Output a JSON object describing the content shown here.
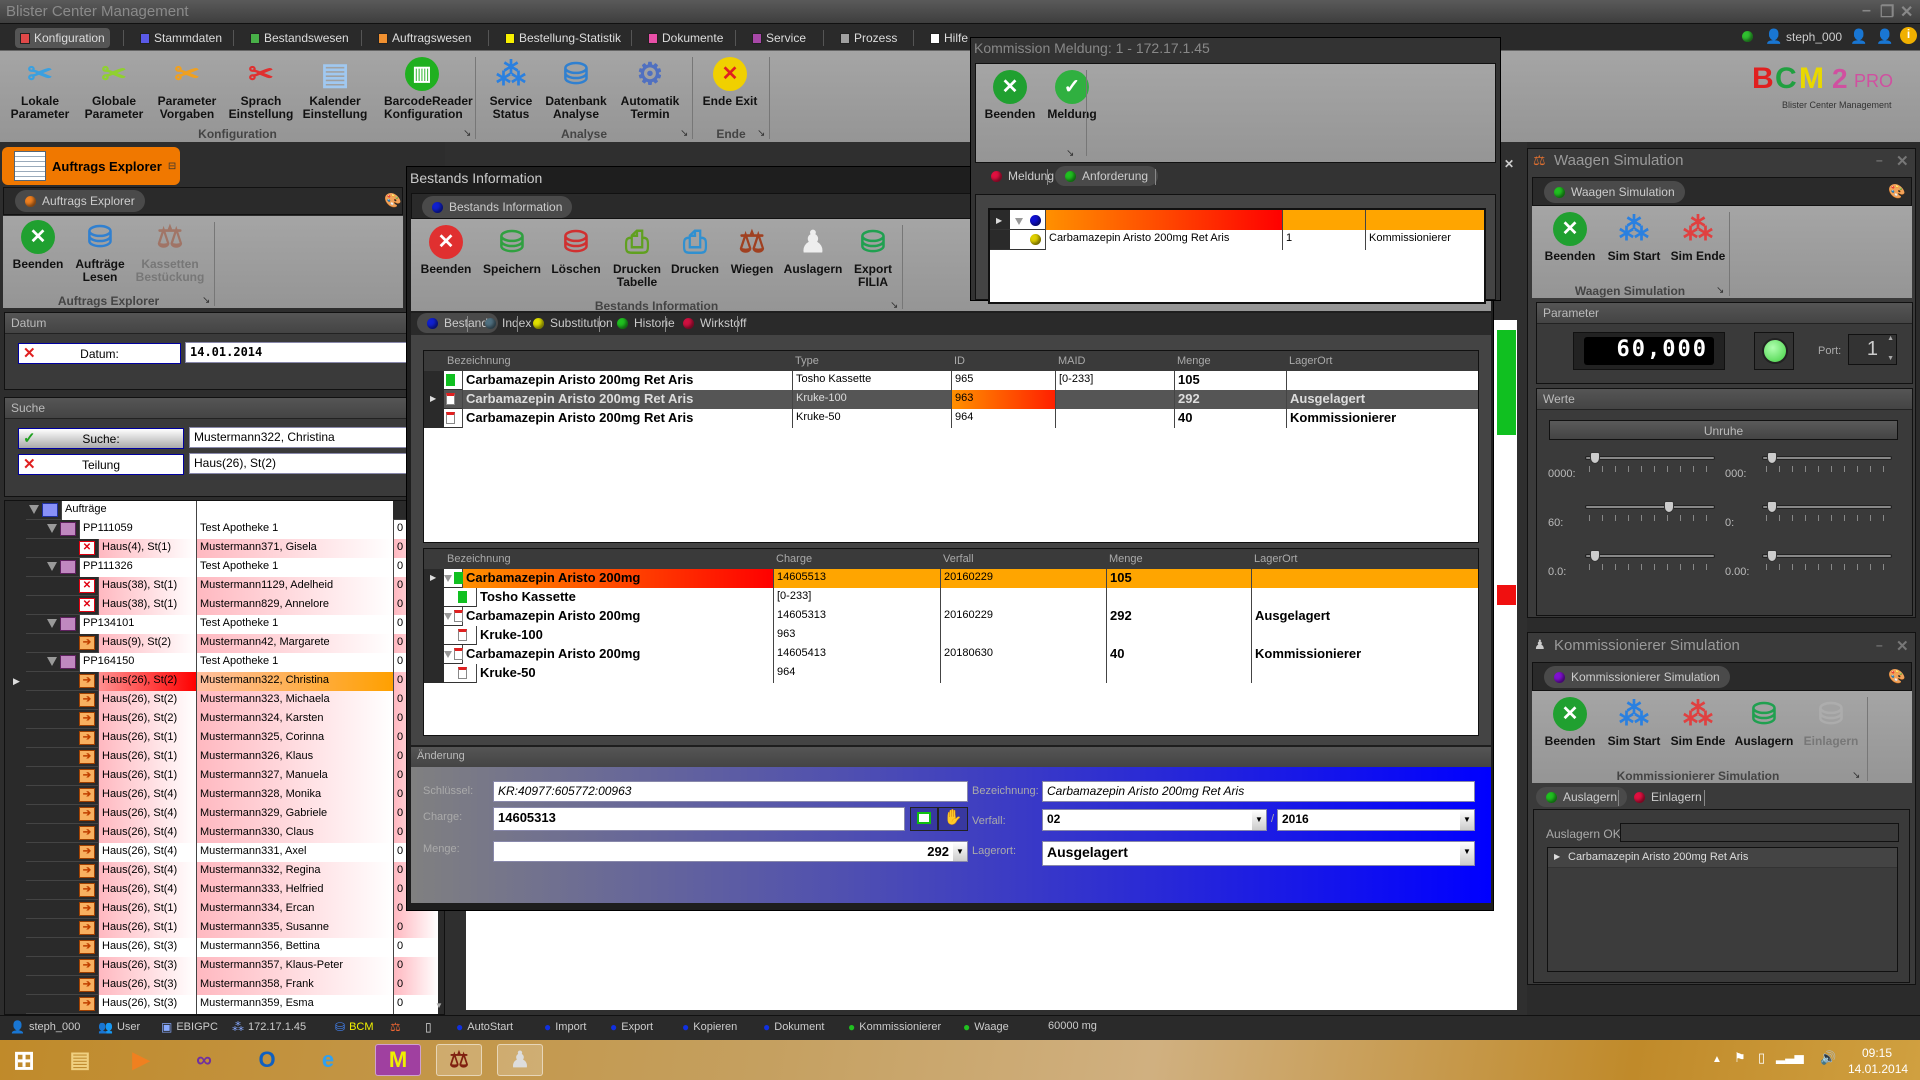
{
  "app": {
    "title": "Blister Center Management",
    "user": "steph_000"
  },
  "menu_tabs": [
    {
      "label": "Konfiguration",
      "color": "#e04848",
      "active": true
    },
    {
      "label": "Stammdaten",
      "color": "#5a5ae8"
    },
    {
      "label": "Bestandswesen",
      "color": "#48b048"
    },
    {
      "label": "Auftragswesen",
      "color": "#f09030"
    },
    {
      "label": "Bestellung-Statistik",
      "color": "#f8f000"
    },
    {
      "label": "Dokumente",
      "color": "#e850a8"
    },
    {
      "label": "Service",
      "color": "#a848a8"
    },
    {
      "label": "Prozess",
      "color": "#a0a0a0"
    },
    {
      "label": "Hilfe",
      "color": "#ffffff"
    }
  ],
  "main_ribbon": {
    "groups": [
      {
        "label": "Konfiguration",
        "buttons": [
          {
            "label": "Lokale\nParameter",
            "icon": "wrench-blue-icon"
          },
          {
            "label": "Globale\nParameter",
            "icon": "wrench-green-icon"
          },
          {
            "label": "Parameter\nVorgaben",
            "icon": "wrench-orange-icon"
          },
          {
            "label": "Sprach\nEinstellung",
            "icon": "wrench-red-icon"
          },
          {
            "label": "Kalender\nEinstellung",
            "icon": "calendar-layers-icon"
          },
          {
            "label": "BarcodeReader\nKonfiguration",
            "icon": "barcode-icon"
          }
        ]
      },
      {
        "label": "Analyse",
        "buttons": [
          {
            "label": "Service\nStatus",
            "icon": "network-icon"
          },
          {
            "label": "Datenbank\nAnalyse",
            "icon": "database-gear-icon"
          },
          {
            "label": "Automatik\nTermin",
            "icon": "gear-icon"
          }
        ]
      },
      {
        "label": "Ende",
        "buttons": [
          {
            "label": "Ende Exit",
            "icon": "exit-icon"
          }
        ]
      }
    ]
  },
  "logo": {
    "text": "BCM2 PRO",
    "subtitle": "Blister Center Management"
  },
  "auftrags_explorer": {
    "dock_tab": "Auftrags Explorer",
    "tab": "Auftrags Explorer",
    "ribbon": {
      "group": "Auftrags Explorer",
      "buttons": [
        {
          "label": "Beenden",
          "icon": "close-green-icon"
        },
        {
          "label": "Aufträge\nLesen",
          "icon": "database-icon"
        },
        {
          "label": "Kassetten\nBestückung",
          "icon": "scale-icon",
          "disabled": true
        }
      ]
    },
    "datum": {
      "section": "Datum",
      "label": "Datum:",
      "value": "14.01.2014"
    },
    "suche": {
      "section": "Suche",
      "search_label": "Suche:",
      "search_value": "Mustermann322, Christina",
      "teilung_label": "Teilung",
      "teilung_value": "Haus(26), St(2)"
    },
    "tree": [
      {
        "t": "root",
        "c1": "Aufträge"
      },
      {
        "t": "order",
        "c1": "PP111059",
        "c2": "Test Apotheke 1",
        "c3": "0"
      },
      {
        "t": "patient",
        "state": "error",
        "hl": "pink",
        "c1": "Haus(4), St(1)",
        "c2": "Mustermann371, Gisela",
        "c3": "0"
      },
      {
        "t": "order",
        "c1": "PP111326",
        "c2": "Test Apotheke 1",
        "c3": "0"
      },
      {
        "t": "patient",
        "state": "error",
        "hl": "pink",
        "c1": "Haus(38), St(1)",
        "c2": "Mustermann1129, Adelheid",
        "c3": "0"
      },
      {
        "t": "patient",
        "state": "error",
        "hl": "pink",
        "c1": "Haus(38), St(1)",
        "c2": "Mustermann829, Annelore",
        "c3": "0"
      },
      {
        "t": "order",
        "c1": "PP134101",
        "c2": "Test Apotheke 1",
        "c3": "0"
      },
      {
        "t": "patient",
        "state": "pending",
        "hl": "pink",
        "c1": "Haus(9), St(2)",
        "c2": "Mustermann42, Margarete",
        "c3": "0"
      },
      {
        "t": "order",
        "c1": "PP164150",
        "c2": "Test Apotheke 1",
        "c3": "0"
      },
      {
        "t": "patient",
        "state": "pending",
        "hl": "selected",
        "c1": "Haus(26), St(2)",
        "c2": "Mustermann322, Christina",
        "c3": "0"
      },
      {
        "t": "patient",
        "state": "pending",
        "hl": "pink",
        "c1": "Haus(26), St(2)",
        "c2": "Mustermann323, Michaela",
        "c3": "0"
      },
      {
        "t": "patient",
        "state": "pending",
        "hl": "pink",
        "c1": "Haus(26), St(2)",
        "c2": "Mustermann324, Karsten",
        "c3": "0"
      },
      {
        "t": "patient",
        "state": "pending",
        "hl": "pink",
        "c1": "Haus(26), St(1)",
        "c2": "Mustermann325, Corinna",
        "c3": "0"
      },
      {
        "t": "patient",
        "state": "pending",
        "hl": "pink",
        "c1": "Haus(26), St(1)",
        "c2": "Mustermann326, Klaus",
        "c3": "0"
      },
      {
        "t": "patient",
        "state": "pending",
        "hl": "pink",
        "c1": "Haus(26), St(1)",
        "c2": "Mustermann327, Manuela",
        "c3": "0"
      },
      {
        "t": "patient",
        "state": "pending",
        "hl": "pink",
        "c1": "Haus(26), St(4)",
        "c2": "Mustermann328, Monika",
        "c3": "0"
      },
      {
        "t": "patient",
        "state": "pending",
        "hl": "pink",
        "c1": "Haus(26), St(4)",
        "c2": "Mustermann329, Gabriele",
        "c3": "0"
      },
      {
        "t": "patient",
        "state": "pending",
        "hl": "pink",
        "c1": "Haus(26), St(4)",
        "c2": "Mustermann330, Claus",
        "c3": "0"
      },
      {
        "t": "patient",
        "state": "pending",
        "hl": "white",
        "c1": "Haus(26), St(4)",
        "c2": "Mustermann331, Axel",
        "c3": "0"
      },
      {
        "t": "patient",
        "state": "pending",
        "hl": "pink",
        "c1": "Haus(26), St(4)",
        "c2": "Mustermann332, Regina",
        "c3": "0"
      },
      {
        "t": "patient",
        "state": "pending",
        "hl": "pink",
        "c1": "Haus(26), St(4)",
        "c2": "Mustermann333, Helfried",
        "c3": "0"
      },
      {
        "t": "patient",
        "state": "pending",
        "hl": "pink",
        "c1": "Haus(26), St(1)",
        "c2": "Mustermann334, Ercan",
        "c3": "0"
      },
      {
        "t": "patient",
        "state": "pending",
        "hl": "pink",
        "c1": "Haus(26), St(1)",
        "c2": "Mustermann335, Susanne",
        "c3": "0"
      },
      {
        "t": "patient",
        "state": "pending",
        "hl": "white",
        "c1": "Haus(26), St(3)",
        "c2": "Mustermann356, Bettina",
        "c3": "0"
      },
      {
        "t": "patient",
        "state": "pending",
        "hl": "pink",
        "c1": "Haus(26), St(3)",
        "c2": "Mustermann357, Klaus-Peter",
        "c3": "0"
      },
      {
        "t": "patient",
        "state": "pending",
        "hl": "pink",
        "c1": "Haus(26), St(3)",
        "c2": "Mustermann358, Frank",
        "c3": "0"
      },
      {
        "t": "patient",
        "state": "pending",
        "hl": "white",
        "c1": "Haus(26), St(3)",
        "c2": "Mustermann359, Esma",
        "c3": "0"
      }
    ]
  },
  "bestands": {
    "title": "Bestands Information",
    "tab": "Bestands Information",
    "ribbon": {
      "group": "Bestands Information",
      "buttons": [
        {
          "label": "Beenden",
          "icon": "close-red-icon"
        },
        {
          "label": "Speichern",
          "icon": "database-add-icon"
        },
        {
          "label": "Löschen",
          "icon": "database-remove-icon"
        },
        {
          "label": "Drucken\nTabelle",
          "icon": "printer-green-icon"
        },
        {
          "label": "Drucken",
          "icon": "printer-blue-icon"
        },
        {
          "label": "Wiegen",
          "icon": "scale-icon"
        },
        {
          "label": "Auslagern",
          "icon": "robot-icon"
        },
        {
          "label": "Export\nFILIA",
          "icon": "database-export-icon"
        }
      ]
    },
    "subtabs": [
      {
        "label": "Bestand",
        "color": "#1020d0",
        "active": true
      },
      {
        "label": "Index",
        "color": "#507080"
      },
      {
        "label": "Substitution",
        "color": "#e0e000"
      },
      {
        "label": "Historie",
        "color": "#20c020"
      },
      {
        "label": "Wirkstoff",
        "color": "#d01040"
      }
    ],
    "grid1": {
      "columns": [
        "Bezeichnung",
        "Type",
        "ID",
        "MAID",
        "Menge",
        "LagerOrt"
      ],
      "rows": [
        {
          "icon": "kassette-icon",
          "cells": [
            "Carbamazepin Aristo 200mg Ret Aris",
            "Tosho Kassette",
            "965",
            "[0-233]",
            "105",
            ""
          ]
        },
        {
          "icon": "kruke-icon",
          "selected": true,
          "cells": [
            "Carbamazepin Aristo 200mg Ret Aris",
            "Kruke-100",
            "963",
            "",
            "292",
            "Ausgelagert"
          ]
        },
        {
          "icon": "kruke-icon",
          "cells": [
            "Carbamazepin Aristo 200mg Ret Aris",
            "Kruke-50",
            "964",
            "",
            "40",
            "Kommissionierer"
          ]
        }
      ]
    },
    "grid2": {
      "columns": [
        "Bezeichnung",
        "Charge",
        "Verfall",
        "Menge",
        "LagerOrt"
      ],
      "rows": [
        {
          "level": 0,
          "icon": "kassette-icon",
          "highlight": true,
          "cells": [
            "Carbamazepin Aristo 200mg",
            "14605513",
            "20160229",
            "105",
            ""
          ]
        },
        {
          "level": 1,
          "icon": "kassette-icon",
          "cells": [
            "Tosho Kassette",
            "[0-233]",
            "",
            "",
            ""
          ]
        },
        {
          "level": 0,
          "icon": "kruke-icon",
          "cells": [
            "Carbamazepin Aristo 200mg",
            "14605313",
            "20160229",
            "292",
            "Ausgelagert"
          ]
        },
        {
          "level": 1,
          "icon": "kruke-icon",
          "cells": [
            "Kruke-100",
            "963",
            "",
            "",
            ""
          ]
        },
        {
          "level": 0,
          "icon": "kruke-icon",
          "cells": [
            "Carbamazepin Aristo 200mg",
            "14605413",
            "20180630",
            "40",
            "Kommissionierer"
          ]
        },
        {
          "level": 1,
          "icon": "kruke-icon",
          "cells": [
            "Kruke-50",
            "964",
            "",
            "",
            ""
          ]
        }
      ]
    },
    "aenderung": {
      "section": "Änderung",
      "schluessel_label": "Schlüssel:",
      "schluessel": "KR:40977:605772:00963",
      "charge_label": "Charge:",
      "charge": "14605313",
      "menge_label": "Menge:",
      "menge": "292",
      "bezeichnung_label": "Bezeichnung:",
      "bezeichnung": "Carbamazepin Aristo 200mg Ret Aris",
      "verfall_label": "Verfall:",
      "verfall_month": "02",
      "verfall_sep": "/",
      "verfall_year": "2016",
      "lagerort_label": "Lagerort:",
      "lagerort": "Ausgelagert"
    }
  },
  "kommission_meldung": {
    "title": "Kommission Meldung: 1 - 172.17.1.45",
    "ribbon": {
      "buttons": [
        {
          "label": "Beenden",
          "icon": "close-green-icon"
        },
        {
          "label": "Meldung",
          "icon": "check-green-icon"
        }
      ]
    },
    "tabs": [
      {
        "label": "Meldung",
        "color": "#e01040"
      },
      {
        "label": "Anforderung",
        "color": "#20c020",
        "active": true
      }
    ],
    "rows": [
      {
        "cells": [
          "",
          "",
          ""
        ],
        "group": true
      },
      {
        "cells": [
          "Carbamazepin Aristo 200mg Ret Aris",
          "1",
          "Kommissionierer"
        ]
      }
    ]
  },
  "waagen": {
    "title": "Waagen Simulation",
    "tab": "Waagen Simulation",
    "ribbon": {
      "group": "Waagen Simulation",
      "buttons": [
        {
          "label": "Beenden",
          "icon": "close-green-icon"
        },
        {
          "label": "Sim Start",
          "icon": "network-start-icon"
        },
        {
          "label": "Sim Ende",
          "icon": "network-stop-icon"
        }
      ]
    },
    "parameter": {
      "section": "Parameter",
      "display": "60,000",
      "status_color": "#40d040",
      "port_label": "Port:",
      "port": "1"
    },
    "werte": {
      "section": "Werte",
      "unruhe": "Unruhe",
      "sliders": [
        {
          "label": "0000:",
          "value": 0.03
        },
        {
          "label": "000:",
          "value": 0.03
        },
        {
          "label": "60:",
          "value": 0.65
        },
        {
          "label": "0:",
          "value": 0.03
        },
        {
          "label": "0.0:",
          "value": 0.03
        },
        {
          "label": "0.00:",
          "value": 0.03
        }
      ]
    }
  },
  "kommissionierer": {
    "title": "Kommissionierer Simulation",
    "tab": "Kommissionierer Simulation",
    "ribbon": {
      "group": "Kommissionierer Simulation",
      "buttons": [
        {
          "label": "Beenden",
          "icon": "close-green-icon"
        },
        {
          "label": "Sim Start",
          "icon": "network-start-icon"
        },
        {
          "label": "Sim Ende",
          "icon": "network-stop-icon"
        },
        {
          "label": "Auslagern",
          "icon": "database-export-icon"
        },
        {
          "label": "Einlagern",
          "icon": "database-import-icon",
          "disabled": true
        }
      ]
    },
    "tabs": [
      {
        "label": "Auslagern",
        "color": "#20c020",
        "active": true
      },
      {
        "label": "Einlagern",
        "color": "#e01040"
      }
    ],
    "ok_label": "Auslagern OK:",
    "ok_value": "",
    "list": [
      "Carbamazepin Aristo 200mg Ret Aris"
    ]
  },
  "status_bar": [
    {
      "label": "steph_000",
      "icon": "user-icon",
      "color": "#ccc"
    },
    {
      "label": "User",
      "icon": "users-icon",
      "color": "#ccc"
    },
    {
      "label": "EBIGPC",
      "icon": "computer-icon",
      "color": "#ccc"
    },
    {
      "label": "172.17.1.45",
      "icon": "network-icon",
      "color": "#ccc"
    },
    {
      "label": "BCM",
      "icon": "database-icon",
      "color": "#f0f000"
    },
    {
      "label": "",
      "icon": "scale-icon",
      "color": "#ccc"
    },
    {
      "label": "",
      "icon": "device-icon",
      "color": "#ccc"
    },
    {
      "label": "AutoStart",
      "icon": "blue-dot-icon",
      "color": "#ccc"
    },
    {
      "label": "Import",
      "icon": "blue-dot-icon",
      "color": "#ccc"
    },
    {
      "label": "Export",
      "icon": "blue-dot-icon",
      "color": "#ccc"
    },
    {
      "label": "Kopieren",
      "icon": "blue-dot-icon",
      "color": "#ccc"
    },
    {
      "label": "Dokument",
      "icon": "blue-dot-icon",
      "color": "#ccc"
    },
    {
      "label": "Kommissionierer",
      "icon": "green-dot-icon",
      "color": "#ccc"
    },
    {
      "label": "Waage",
      "icon": "green-dot-icon",
      "color": "#ccc"
    },
    {
      "label": "60000 mg",
      "icon": "",
      "color": "#ccc"
    }
  ],
  "taskbar": {
    "apps": [
      "windows-start-icon",
      "file-explorer-icon",
      "media-player-icon",
      "visual-studio-icon",
      "outlook-icon",
      "internet-explorer-icon",
      "bcm-app-icon",
      "scale-app-icon",
      "robot-app-icon"
    ],
    "time": "09:15",
    "date": "14.01.2014"
  }
}
